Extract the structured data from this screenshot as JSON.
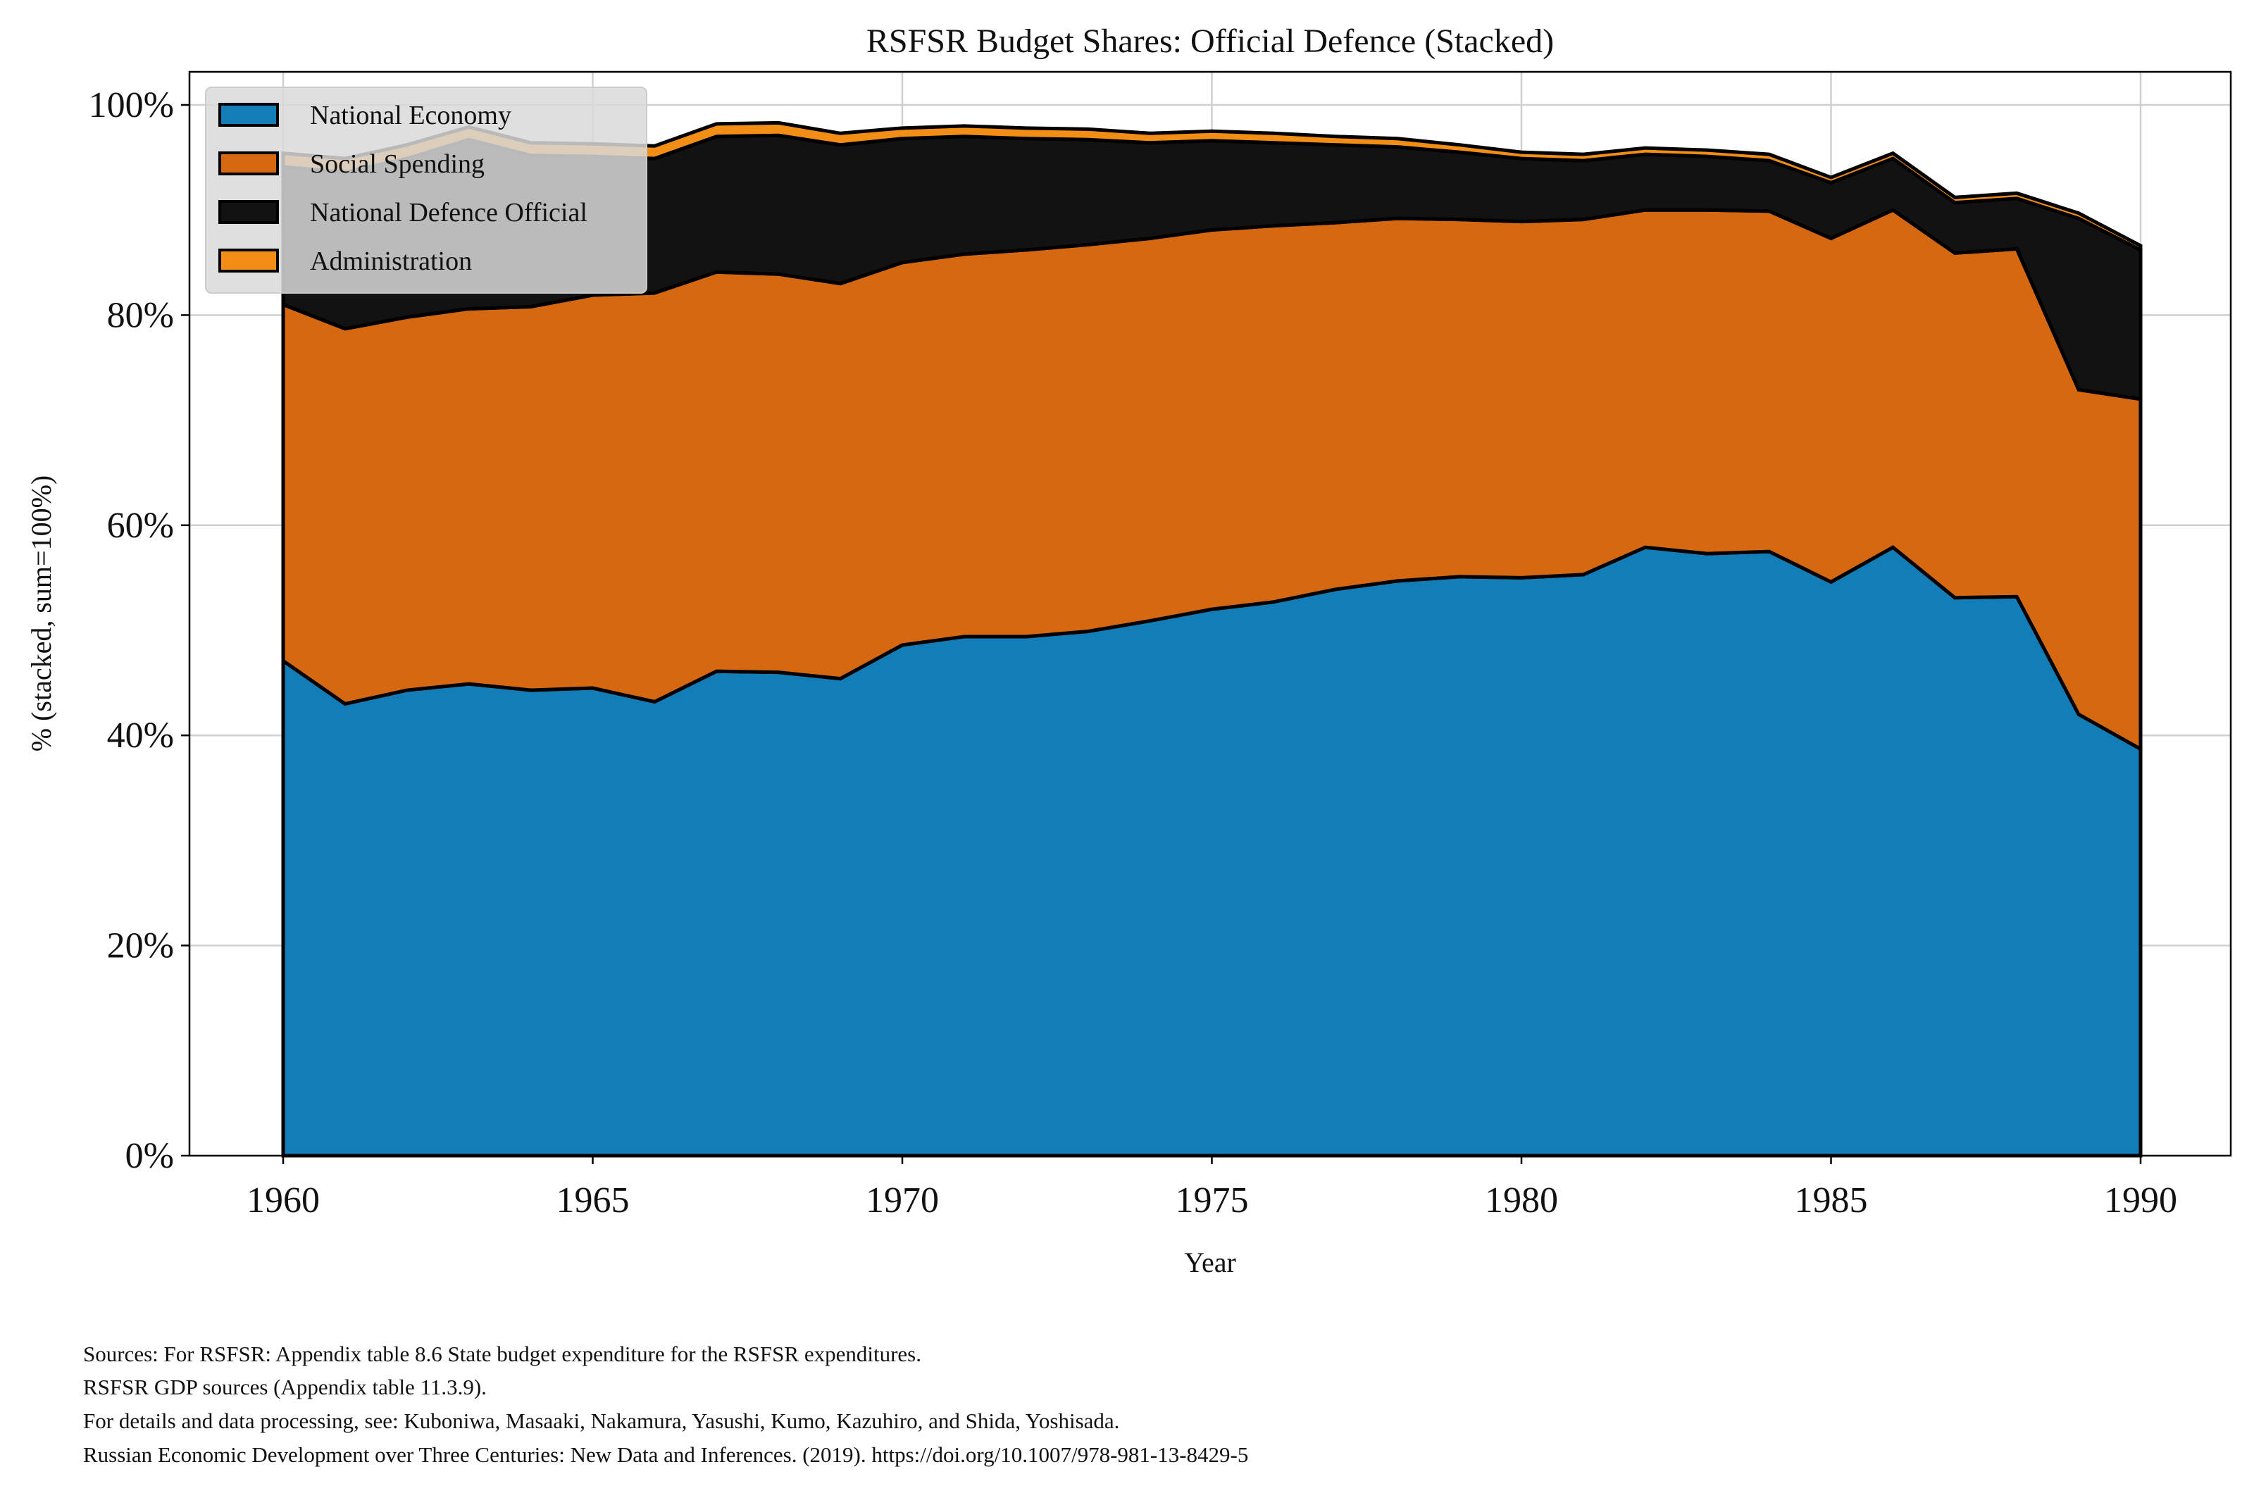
{
  "chart_data": {
    "type": "area",
    "stacked": true,
    "title": "RSFSR Budget Shares: Official Defence (Stacked)",
    "xlabel": "Year",
    "ylabel": "% (stacked, sum=100%)",
    "xlim": [
      1958.5,
      1991.5
    ],
    "ylim": [
      0,
      103
    ],
    "xticks": [
      1960,
      1965,
      1970,
      1975,
      1980,
      1985,
      1990
    ],
    "xtick_labels": [
      "1960",
      "1965",
      "1970",
      "1975",
      "1980",
      "1985",
      "1990"
    ],
    "yticks": [
      0,
      20,
      40,
      60,
      80,
      100
    ],
    "ytick_labels": [
      "0%",
      "20%",
      "40%",
      "60%",
      "80%",
      "100%"
    ],
    "grid": true,
    "legend_position": "top-left",
    "x": [
      1960,
      1961,
      1962,
      1963,
      1964,
      1965,
      1966,
      1967,
      1968,
      1969,
      1970,
      1971,
      1972,
      1973,
      1974,
      1975,
      1976,
      1977,
      1978,
      1979,
      1980,
      1981,
      1982,
      1983,
      1984,
      1985,
      1986,
      1987,
      1988,
      1989,
      1990
    ],
    "series": [
      {
        "name": "National Economy",
        "color": "#137db7",
        "values": [
          47.1,
          43.0,
          44.3,
          44.9,
          44.3,
          44.5,
          43.2,
          46.1,
          46.0,
          45.4,
          48.6,
          49.4,
          49.4,
          49.9,
          50.9,
          52.0,
          52.7,
          53.9,
          54.7,
          55.1,
          55.0,
          55.3,
          57.9,
          57.3,
          57.5,
          54.6,
          57.9,
          53.1,
          53.2,
          42.0,
          38.7
        ]
      },
      {
        "name": "Social Spending",
        "color": "#d66812",
        "values": [
          33.9,
          35.7,
          35.5,
          35.7,
          36.5,
          37.4,
          38.9,
          38.0,
          37.9,
          37.6,
          36.4,
          36.4,
          36.8,
          36.8,
          36.4,
          36.1,
          35.8,
          34.9,
          34.5,
          34.0,
          33.9,
          33.8,
          32.1,
          32.7,
          32.4,
          32.7,
          32.1,
          32.8,
          33.1,
          30.9,
          33.3
        ]
      },
      {
        "name": "National Defence Official",
        "color": "#121212",
        "values": [
          13.1,
          14.9,
          15.1,
          16.1,
          14.4,
          13.2,
          12.8,
          12.9,
          13.2,
          13.2,
          11.8,
          11.2,
          10.6,
          10.0,
          9.1,
          8.5,
          7.9,
          7.4,
          6.8,
          6.4,
          6.0,
          5.6,
          5.3,
          5.1,
          4.8,
          5.3,
          4.9,
          4.8,
          4.8,
          16.3,
          14.2
        ]
      },
      {
        "name": "Administration",
        "color": "#f28e15",
        "values": [
          1.3,
          1.3,
          1.3,
          1.2,
          1.2,
          1.2,
          1.2,
          1.2,
          1.2,
          1.1,
          1.0,
          1.0,
          1.0,
          1.0,
          0.9,
          0.9,
          0.9,
          0.8,
          0.8,
          0.7,
          0.6,
          0.6,
          0.6,
          0.6,
          0.6,
          0.5,
          0.5,
          0.5,
          0.5,
          0.5,
          0.4
        ]
      }
    ]
  },
  "sources": [
    "Sources: For RSFSR: Appendix table 8.6 State budget expenditure for the RSFSR expenditures.",
    "RSFSR GDP sources (Appendix table 11.3.9).",
    "For details and data processing, see: Kuboniwa, Masaaki, Nakamura, Yasushi, Kumo, Kazuhiro, and Shida, Yoshisada.",
    "Russian Economic Development over Three Centuries: New Data and Inferences. (2019). https://doi.org/10.1007/978-981-13-8429-5"
  ]
}
